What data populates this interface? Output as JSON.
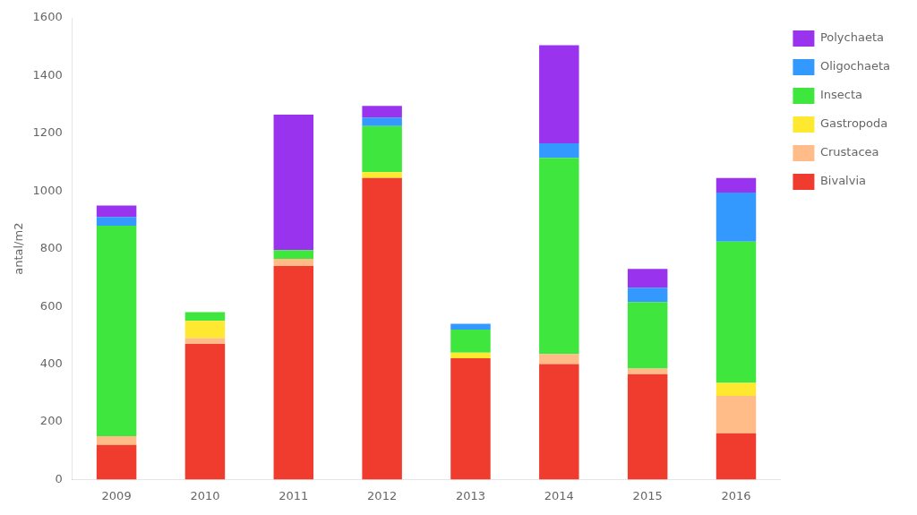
{
  "chart_data": {
    "type": "bar",
    "stacked": true,
    "categories": [
      "2009",
      "2010",
      "2011",
      "2012",
      "2013",
      "2014",
      "2015",
      "2016"
    ],
    "series": [
      {
        "name": "Bivalvia",
        "color": "#F03C2E",
        "values": [
          120,
          470,
          740,
          1045,
          420,
          400,
          365,
          160
        ]
      },
      {
        "name": "Crustacea",
        "color": "#FFBB88",
        "values": [
          30,
          20,
          25,
          0,
          0,
          35,
          20,
          130
        ]
      },
      {
        "name": "Gastropoda",
        "color": "#FFE830",
        "values": [
          0,
          60,
          0,
          20,
          20,
          0,
          0,
          45
        ]
      },
      {
        "name": "Insecta",
        "color": "#3EE63E",
        "values": [
          730,
          30,
          30,
          160,
          80,
          680,
          230,
          490
        ]
      },
      {
        "name": "Oligochaeta",
        "color": "#3399FF",
        "values": [
          30,
          0,
          0,
          30,
          20,
          50,
          50,
          170
        ]
      },
      {
        "name": "Polychaeta",
        "color": "#9933EE",
        "values": [
          40,
          0,
          470,
          40,
          0,
          340,
          65,
          50
        ]
      }
    ],
    "ylabel": "antal/m2",
    "ylim": [
      0,
      1600
    ],
    "yticks": [
      0,
      200,
      400,
      600,
      800,
      1000,
      1200,
      1400,
      1600
    ],
    "grid": false,
    "legend": "right"
  }
}
